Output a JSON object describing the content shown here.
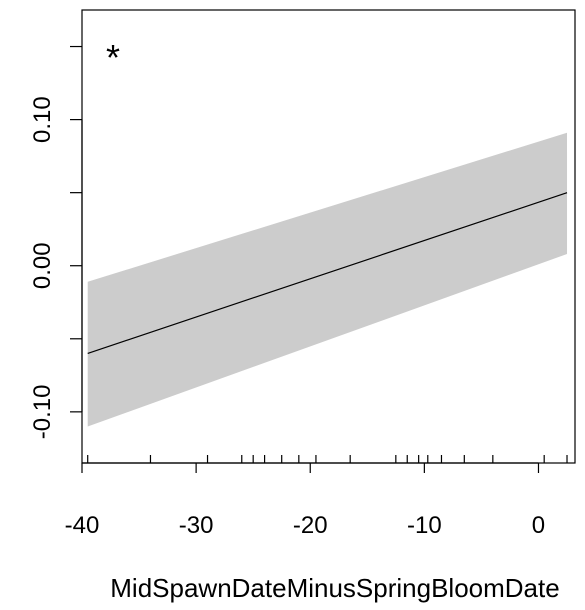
{
  "chart_data": {
    "type": "line",
    "title": "",
    "xlabel": "MidSpawnDateMinusSpringBloomDate",
    "ylabel": "",
    "xlim": [
      -40,
      3.2
    ],
    "ylim": [
      -0.135,
      0.175
    ],
    "x_ticks": [
      -40,
      -30,
      -20,
      -10,
      0
    ],
    "x_tick_labels": [
      "-40",
      "-30",
      "-20",
      "-10",
      "0"
    ],
    "y_ticks": [
      -0.1,
      0.0,
      0.1
    ],
    "y_tick_labels": [
      "-0.10",
      "0.00",
      "0.10"
    ],
    "annotation": "*",
    "grid": false,
    "colors": {
      "band": "#cccccc",
      "line": "#000000"
    },
    "series": [
      {
        "x": [
          -39.5,
          2.5
        ],
        "y": [
          -0.06,
          0.05
        ],
        "lower": [
          -0.11,
          0.008
        ],
        "upper": [
          -0.011,
          0.091
        ]
      }
    ],
    "rug_x": [
      -39.5,
      -34,
      -29,
      -26,
      -25,
      -24,
      -22.5,
      -21,
      -19.5,
      -16.5,
      -12.5,
      -11.5,
      -10.5,
      -9.7,
      -8.5,
      -6.5,
      -4,
      0.5,
      2.5
    ]
  }
}
